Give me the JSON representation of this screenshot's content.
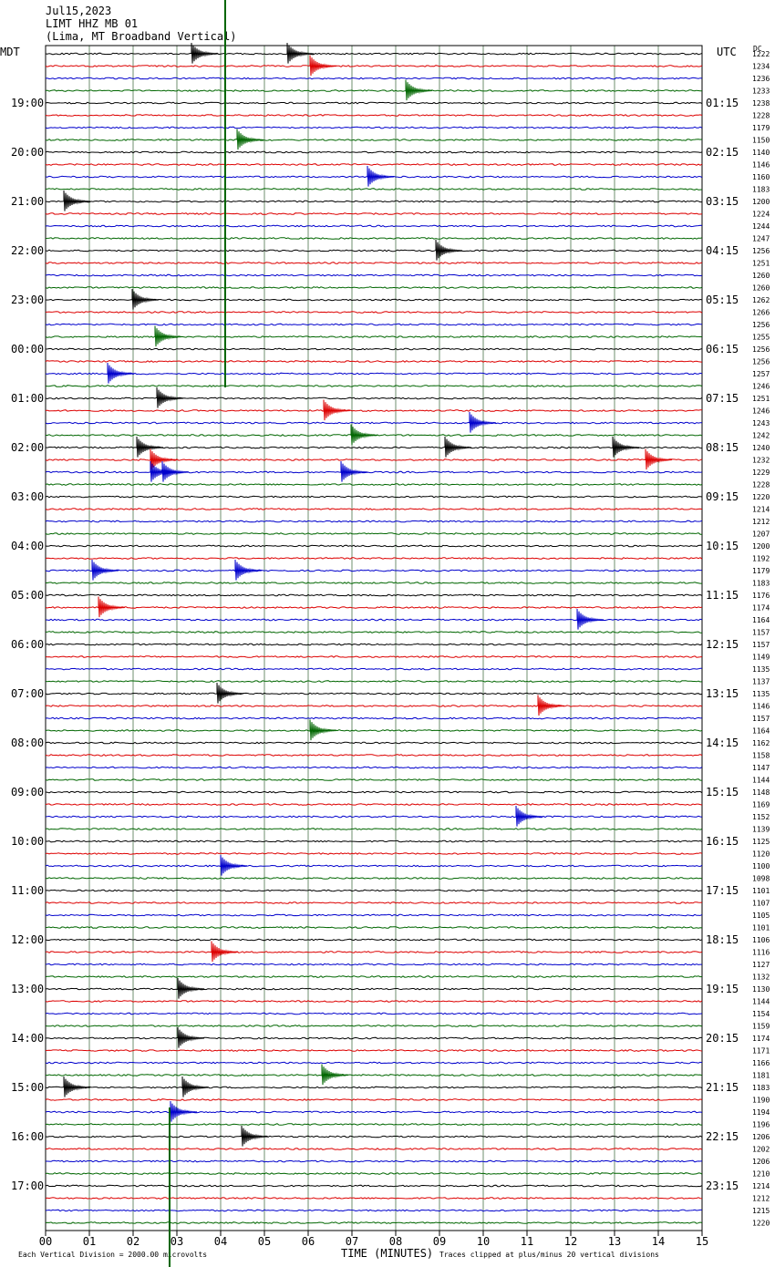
{
  "header": {
    "lines": [
      "Jul15,2023",
      "LIMT HHZ MB 01",
      "(Lima, MT Broadband Vertical)"
    ]
  },
  "left_axis": {
    "title": "MDT",
    "labels": [
      "19:00",
      "20:00",
      "21:00",
      "22:00",
      "23:00",
      "00:00",
      "01:00",
      "02:00",
      "03:00",
      "04:00",
      "05:00",
      "06:00",
      "07:00",
      "08:00",
      "09:00",
      "10:00",
      "11:00",
      "12:00",
      "13:00",
      "14:00",
      "15:00",
      "16:00",
      "17:00"
    ]
  },
  "right_axis": {
    "title": "UTC",
    "labels": [
      "01:15",
      "02:15",
      "03:15",
      "04:15",
      "05:15",
      "06:15",
      "07:15",
      "08:15",
      "09:15",
      "10:15",
      "11:15",
      "12:15",
      "13:15",
      "14:15",
      "15:15",
      "16:15",
      "17:15",
      "18:15",
      "19:15",
      "20:15",
      "21:15",
      "22:15",
      "23:15"
    ]
  },
  "dc": {
    "title": "DC",
    "values": [
      "1222",
      "1234",
      "1236",
      "1233",
      "1238",
      "1228",
      "1179",
      "1150",
      "1140",
      "1146",
      "1160",
      "1183",
      "1200",
      "1224",
      "1244",
      "1247",
      "1256",
      "1251",
      "1260",
      "1260",
      "1262",
      "1266",
      "1256",
      "1255",
      "1256",
      "1256",
      "1257",
      "1246",
      "1251",
      "1246",
      "1243",
      "1242",
      "1240",
      "1232",
      "1229",
      "1228",
      "1220",
      "1214",
      "1212",
      "1207",
      "1200",
      "1192",
      "1179",
      "1183",
      "1176",
      "1174",
      "1164",
      "1157",
      "1157",
      "1149",
      "1135",
      "1137",
      "1135",
      "1146",
      "1157",
      "1164",
      "1162",
      "1158",
      "1147",
      "1144",
      "1148",
      "1169",
      "1152",
      "1139",
      "1125",
      "1120",
      "1100",
      "1098",
      "1101",
      "1107",
      "1105",
      "1101",
      "1106",
      "1116",
      "1127",
      "1132",
      "1130",
      "1144",
      "1154",
      "1159",
      "1174",
      "1171",
      "1166",
      "1181",
      "1183",
      "1190",
      "1194",
      "1196",
      "1206",
      "1202",
      "1206",
      "1210",
      "1214",
      "1212",
      "1215",
      "1220"
    ]
  },
  "x_axis": {
    "ticks": [
      "00",
      "01",
      "02",
      "03",
      "04",
      "05",
      "06",
      "07",
      "08",
      "09",
      "10",
      "11",
      "12",
      "13",
      "14",
      "15"
    ],
    "label": "TIME (MINUTES)"
  },
  "footer": {
    "left": "Each Vertical Division = 2000.00 microvolts",
    "right": "Traces clipped at plus/minus 20 vertical divisions"
  }
}
